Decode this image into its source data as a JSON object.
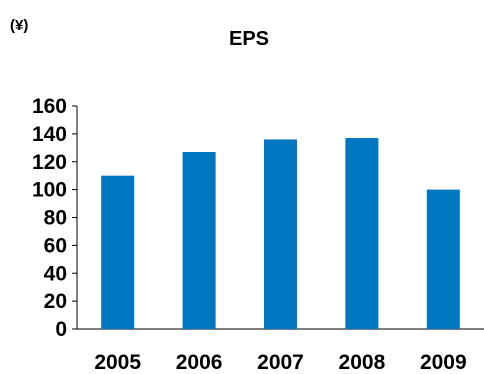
{
  "chart_data": {
    "type": "bar",
    "title": "EPS",
    "unit_label": "(¥)",
    "categories": [
      "2005",
      "2006",
      "2007",
      "2008",
      "2009"
    ],
    "values": [
      110,
      127,
      136,
      137,
      100
    ],
    "ylim": [
      0,
      160
    ],
    "yticks": [
      0,
      20,
      40,
      60,
      80,
      100,
      120,
      140,
      160
    ],
    "bar_color": "#0077C0",
    "grid": false,
    "legend": "none"
  }
}
